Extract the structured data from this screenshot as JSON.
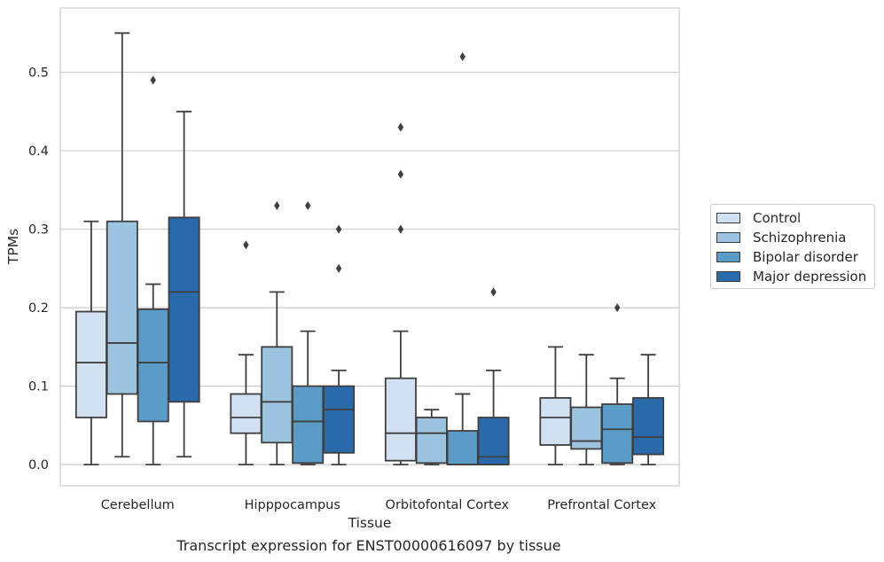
{
  "caption": "Transcript expression for ENST00000616097 by tissue",
  "chart_data": {
    "type": "box",
    "xlabel": "Tissue",
    "ylabel": "TPMs",
    "ylim": [
      -0.027,
      0.582
    ],
    "yticks": [
      "0.0",
      "0.1",
      "0.2",
      "0.3",
      "0.4",
      "0.5"
    ],
    "grid": true,
    "legend_position": "right",
    "categories": [
      "Cerebellum",
      "Hipppocampus",
      "Orbitofontal Cortex",
      "Prefrontal Cortex"
    ],
    "series": [
      {
        "name": "Control",
        "color": "#d2e1f1",
        "boxes": [
          {
            "whislo": 0.0,
            "q1": 0.06,
            "med": 0.13,
            "q3": 0.195,
            "whishi": 0.31,
            "fliers": []
          },
          {
            "whislo": 0.0,
            "q1": 0.04,
            "med": 0.06,
            "q3": 0.09,
            "whishi": 0.14,
            "fliers": [
              0.28
            ]
          },
          {
            "whislo": 0.0,
            "q1": 0.005,
            "med": 0.04,
            "q3": 0.11,
            "whishi": 0.17,
            "fliers": [
              0.3,
              0.37,
              0.43
            ]
          },
          {
            "whislo": 0.0,
            "q1": 0.025,
            "med": 0.06,
            "q3": 0.085,
            "whishi": 0.15,
            "fliers": []
          }
        ]
      },
      {
        "name": "Schizophrenia",
        "color": "#9dc4de",
        "boxes": [
          {
            "whislo": 0.01,
            "q1": 0.09,
            "med": 0.155,
            "q3": 0.31,
            "whishi": 0.55,
            "fliers": []
          },
          {
            "whislo": 0.0,
            "q1": 0.028,
            "med": 0.08,
            "q3": 0.15,
            "whishi": 0.22,
            "fliers": [
              0.33
            ]
          },
          {
            "whislo": 0.0,
            "q1": 0.002,
            "med": 0.04,
            "q3": 0.06,
            "whishi": 0.07,
            "fliers": []
          },
          {
            "whislo": 0.0,
            "q1": 0.02,
            "med": 0.03,
            "q3": 0.073,
            "whishi": 0.14,
            "fliers": []
          }
        ]
      },
      {
        "name": "Bipolar disorder",
        "color": "#5b9bc7",
        "boxes": [
          {
            "whislo": 0.0,
            "q1": 0.055,
            "med": 0.13,
            "q3": 0.198,
            "whishi": 0.23,
            "fliers": [
              0.49
            ]
          },
          {
            "whislo": 0.0,
            "q1": 0.002,
            "med": 0.055,
            "q3": 0.1,
            "whishi": 0.17,
            "fliers": [
              0.33
            ]
          },
          {
            "whislo": 0.0,
            "q1": 0.0,
            "med": 0.0,
            "q3": 0.043,
            "whishi": 0.09,
            "fliers": [
              0.52
            ]
          },
          {
            "whislo": 0.0,
            "q1": 0.002,
            "med": 0.045,
            "q3": 0.077,
            "whishi": 0.11,
            "fliers": [
              0.2
            ]
          }
        ]
      },
      {
        "name": "Major depression",
        "color": "#2a6aab",
        "boxes": [
          {
            "whislo": 0.01,
            "q1": 0.08,
            "med": 0.22,
            "q3": 0.315,
            "whishi": 0.45,
            "fliers": []
          },
          {
            "whislo": 0.0,
            "q1": 0.015,
            "med": 0.07,
            "q3": 0.1,
            "whishi": 0.12,
            "fliers": [
              0.25,
              0.3
            ]
          },
          {
            "whislo": 0.0,
            "q1": 0.0,
            "med": 0.01,
            "q3": 0.06,
            "whishi": 0.12,
            "fliers": [
              0.22
            ]
          },
          {
            "whislo": 0.0,
            "q1": 0.013,
            "med": 0.035,
            "q3": 0.085,
            "whishi": 0.14,
            "fliers": []
          }
        ]
      }
    ]
  }
}
